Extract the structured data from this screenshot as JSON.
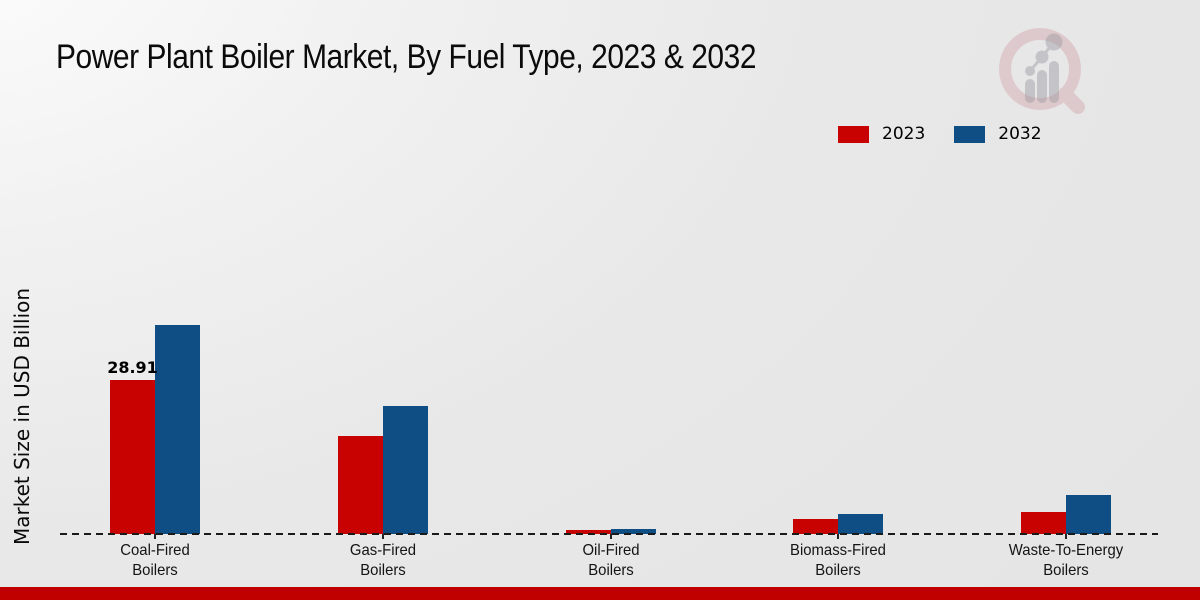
{
  "page": {
    "background_top_left": "#fbfbfb",
    "background_main": "#e8e8e8"
  },
  "footer": {
    "band_color": "#c00000"
  },
  "watermark_icon": "magnifier-bar-chart-logo",
  "chart_data": {
    "type": "bar",
    "title": "Power Plant Boiler Market, By Fuel Type, 2023 & 2032",
    "xlabel": "",
    "ylabel": "Market Size in USD Billion",
    "categories": [
      "Coal-Fired Boilers",
      "Gas-Fired Boilers",
      "Oil-Fired Boilers",
      "Biomass-Fired Boilers",
      "Waste-To-Energy Boilers"
    ],
    "series": [
      {
        "name": "2023",
        "color": "#c80101",
        "values": [
          28.91,
          18.4,
          0.8,
          2.8,
          4.1
        ]
      },
      {
        "name": "2032",
        "color": "#0f4d85",
        "values": [
          39.2,
          24.0,
          1.0,
          3.8,
          7.3
        ]
      }
    ],
    "bar_labels": [
      {
        "category_index": 0,
        "series_index": 0,
        "text": "28.91"
      }
    ],
    "legend_position": "top-right",
    "baseline_style": "dashed",
    "grid": "off",
    "y_ticks_visible": false,
    "ylim": [
      0,
      72
    ]
  }
}
